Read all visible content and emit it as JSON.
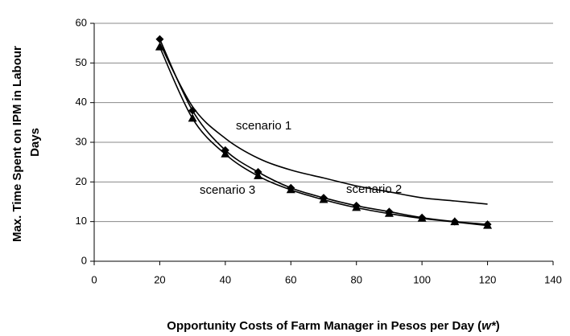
{
  "chart_data": {
    "type": "line",
    "x": [
      20,
      30,
      40,
      50,
      60,
      70,
      80,
      90,
      100,
      110,
      120
    ],
    "series": [
      {
        "name": "scenario 1",
        "color": "#000000",
        "marker": "none",
        "values": [
          55,
          39,
          31,
          26,
          23,
          21,
          19,
          17.5,
          16,
          15.2,
          14.4
        ]
      },
      {
        "name": "scenario 2",
        "color": "#000000",
        "marker": "diamond",
        "values": [
          56,
          38,
          28,
          22.5,
          18.5,
          16,
          14,
          12.5,
          11,
          10,
          9.3
        ]
      },
      {
        "name": "scenario 3",
        "color": "#000000",
        "marker": "triangle",
        "values": [
          54,
          36,
          27,
          21.5,
          18,
          15.5,
          13.5,
          12,
          10.8,
          9.9,
          9
        ]
      }
    ],
    "xlim": [
      0,
      140
    ],
    "xticks": [
      0,
      20,
      40,
      60,
      80,
      100,
      120,
      140
    ],
    "ylim": [
      0,
      60
    ],
    "yticks": [
      0,
      10,
      20,
      30,
      40,
      50,
      60
    ],
    "grid": true,
    "ylabel": [
      "Max. Time Spent on IPM in Labour",
      "Days"
    ],
    "xlabel": [
      "Opportunity Costs of Farm Manager in Pesos per Day (",
      "w*",
      ")"
    ]
  }
}
